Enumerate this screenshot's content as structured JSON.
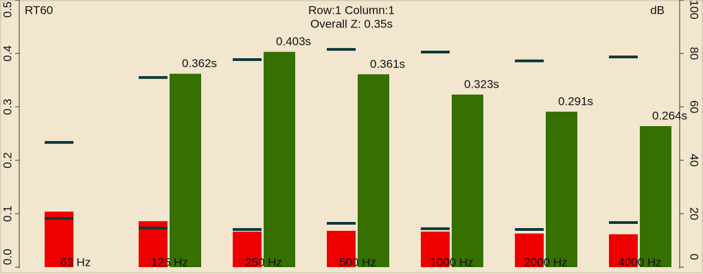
{
  "chart_data": {
    "type": "bar",
    "title": "Row:1 Column:1",
    "subtitle": "Overall Z: 0.35s",
    "ylabel": "RT60",
    "y2label": "dB",
    "categories": [
      "63 Hz",
      "125 Hz",
      "250 Hz",
      "500 Hz",
      "1000 Hz",
      "2000 Hz",
      "4000 Hz"
    ],
    "ylim": [
      0,
      0.5
    ],
    "yticks": [
      {
        "value": 0,
        "label": "0.0"
      },
      0.1,
      0.2,
      0.3,
      0.4,
      0.5
    ],
    "y2lim": [
      0,
      100
    ],
    "y2ticks": [
      0,
      20,
      40,
      60,
      80,
      100
    ],
    "series": [
      {
        "color": "#ee0000",
        "axis": "y2",
        "kind": "bar",
        "values": [
          20.8,
          17.2,
          13.3,
          13.6,
          13.3,
          12.6,
          12.3
        ]
      },
      {
        "color": "#367000",
        "kind": "bar",
        "values": [
          null,
          0.362,
          0.403,
          0.361,
          0.323,
          0.291,
          0.264
        ],
        "value_labels": [
          null,
          "0.362s",
          "0.403s",
          "0.361s",
          "0.323s",
          "0.291s",
          "0.264s"
        ]
      },
      {
        "color": "#0b3a3a",
        "axis": "y2",
        "kind": "dash",
        "values": [
          46.7,
          71,
          77.7,
          81.5,
          80.5,
          77.2,
          78.7
        ]
      },
      {
        "color": "#0b3a3a",
        "axis": "y2",
        "kind": "dash",
        "values": [
          18.2,
          14.6,
          14.1,
          16.4,
          14.4,
          14.1,
          16.7
        ]
      }
    ]
  }
}
